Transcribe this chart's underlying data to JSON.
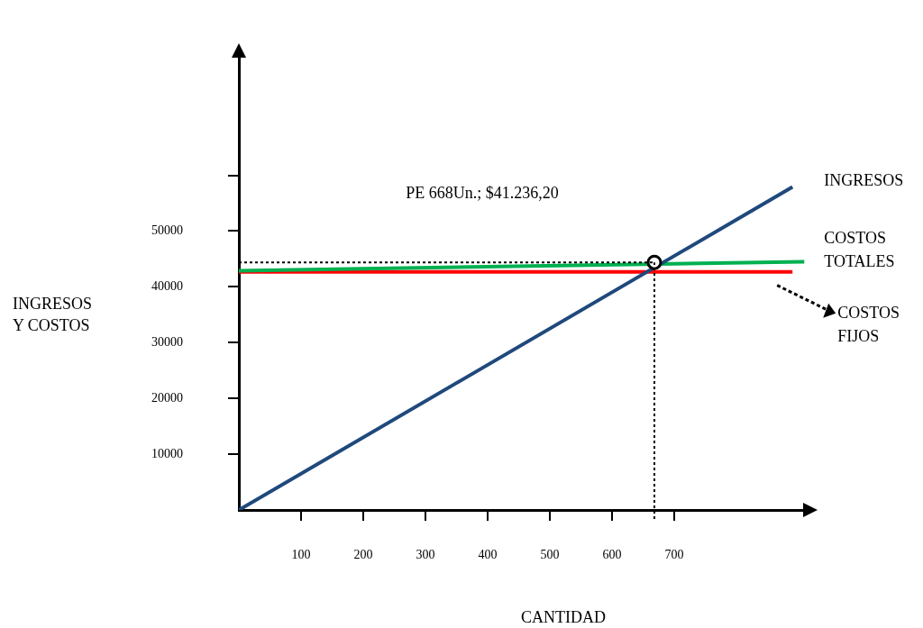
{
  "chart_data": {
    "type": "line",
    "xlabel": "CANTIDAD",
    "ylabel": "INGRESOS Y COSTOS",
    "xlim": [
      0,
      910
    ],
    "xticks": [
      100,
      200,
      300,
      400,
      500,
      600,
      700
    ],
    "ylim": [
      0,
      82000
    ],
    "yticks": [
      10000,
      20000,
      30000,
      40000,
      50000,
      {
        "value": 60000,
        "label": null
      }
    ],
    "grid": false,
    "legend": false,
    "line_style": "solid",
    "marker": "none",
    "series": [
      {
        "name": "INGRESOS",
        "color": "#1f497d",
        "x": [
          0,
          890
        ],
        "values": [
          0,
          57900
        ]
      },
      {
        "name": "COSTOS TOTALES",
        "color": "#00b050",
        "x": [
          0,
          909
        ],
        "values": [
          42900,
          44500
        ]
      },
      {
        "name": "COSTOS FIJOS",
        "color": "#ff0000",
        "x": [
          0,
          890
        ],
        "values": [
          42700,
          42700
        ]
      },
      {
        "type": "scatter",
        "marker": "circle",
        "color": "#000000",
        "x": [
          668
        ],
        "values": [
          44400
        ]
      }
    ],
    "ref_lines": [
      {
        "axis": "x",
        "value": 668,
        "line_style": "dotted",
        "color": "#000000"
      },
      {
        "axis": "y",
        "value": 44400,
        "line_style": "dotted",
        "color": "#000000"
      }
    ],
    "annotations": [
      "PE 668Un.; $41.236,20"
    ]
  }
}
